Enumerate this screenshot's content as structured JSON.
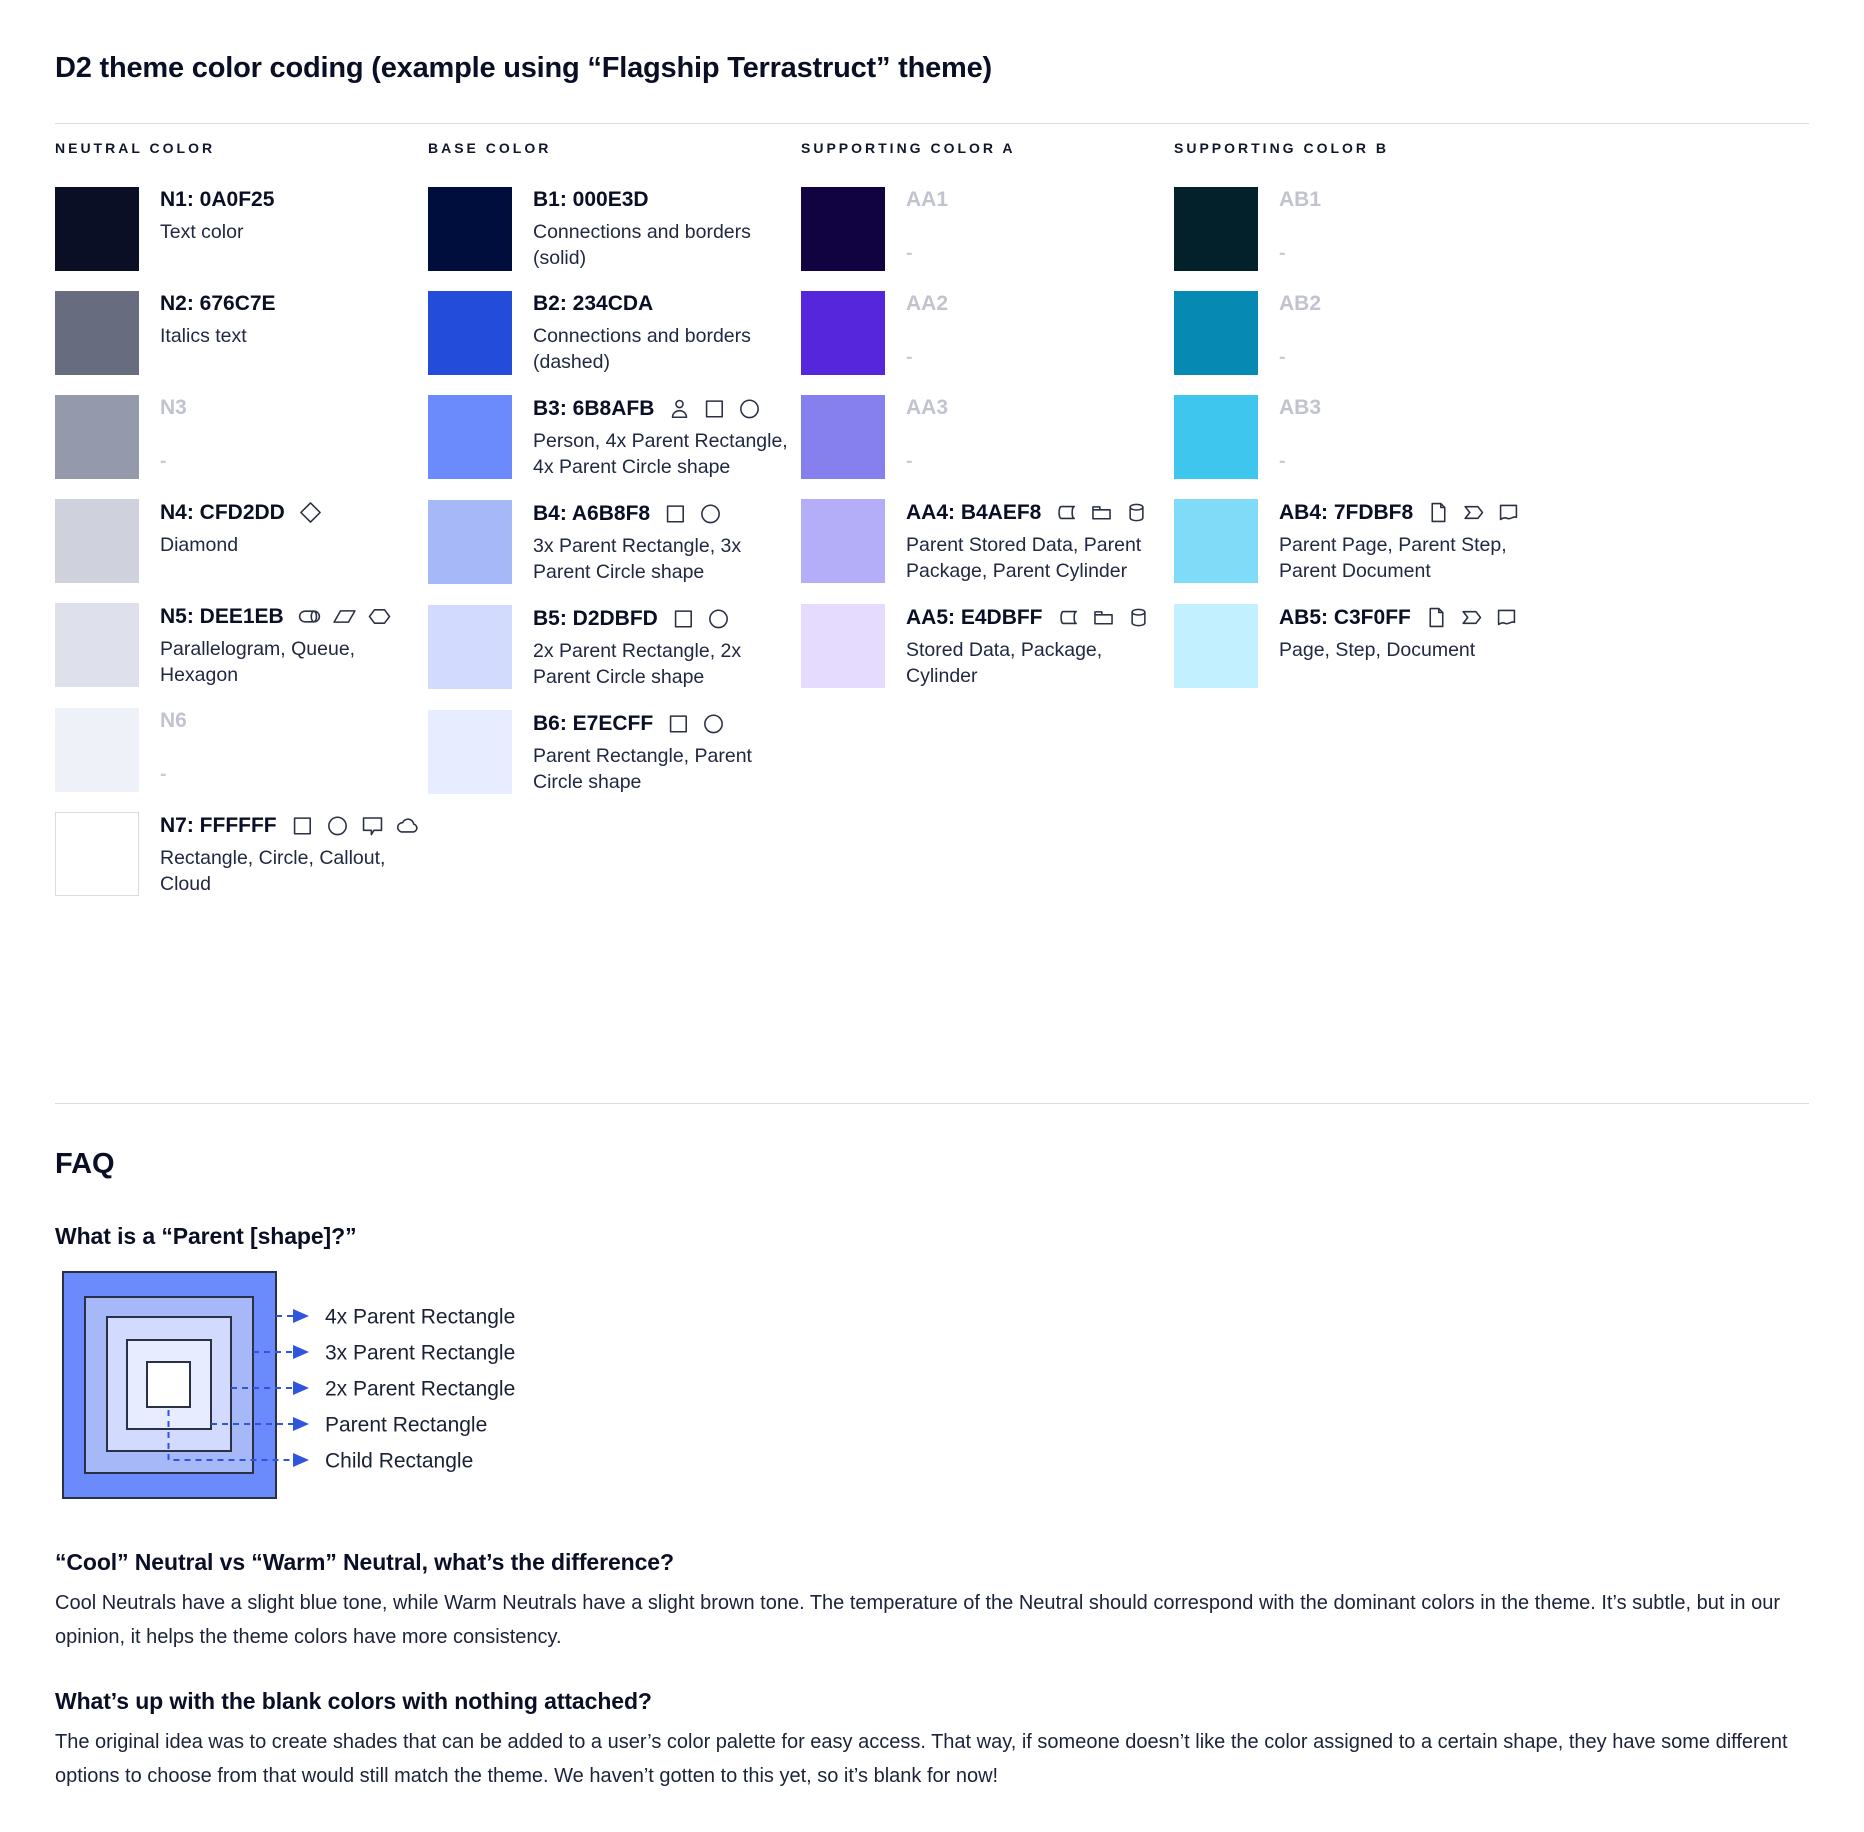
{
  "title": "D2 theme color coding (example using “Flagship Terrastruct” theme)",
  "colors": {
    "text": "#0A0F25",
    "muted_label": "#C1C4CE",
    "divider": "#D8DCE2",
    "icon_stroke": "#2B3144",
    "arrow_accent": "#2E55DB"
  },
  "palette": {
    "columns": [
      {
        "header": "NEUTRAL COLOR",
        "rows": [
          {
            "code": "N1: 0A0F25",
            "desc": "Text color",
            "swatch": "#0A0F25",
            "blank": false,
            "bordered": false,
            "icons": []
          },
          {
            "code": "N2: 676C7E",
            "desc": "Italics text",
            "swatch": "#676C7E",
            "blank": false,
            "bordered": false,
            "icons": []
          },
          {
            "code": "N3",
            "desc": "-",
            "swatch": "#9499AB",
            "blank": true,
            "bordered": false,
            "icons": []
          },
          {
            "code": "N4: CFD2DD",
            "desc": "Diamond",
            "swatch": "#CFD2DD",
            "blank": false,
            "bordered": false,
            "icons": [
              "diamond-icon"
            ]
          },
          {
            "code": "N5: DEE1EB",
            "desc": "Parallelogram, Queue, Hexagon",
            "swatch": "#DEE1EB",
            "blank": false,
            "bordered": false,
            "icons": [
              "queue-icon",
              "parallelogram-icon",
              "hexagon-icon"
            ]
          },
          {
            "code": "N6",
            "desc": "-",
            "swatch": "#EEF1F8",
            "blank": true,
            "bordered": false,
            "icons": []
          },
          {
            "code": "N7: FFFFFF",
            "desc": "Rectangle, Circle, Callout, Cloud",
            "swatch": "#FFFFFF",
            "blank": false,
            "bordered": true,
            "icons": [
              "rectangle-icon",
              "circle-icon",
              "callout-icon",
              "cloud-icon"
            ]
          }
        ]
      },
      {
        "header": "BASE COLOR",
        "rows": [
          {
            "code": "B1: 000E3D",
            "desc": "Connections and borders (solid)",
            "swatch": "#000E3D",
            "blank": false,
            "bordered": false,
            "icons": []
          },
          {
            "code": "B2: 234CDA",
            "desc": "Connections and borders (dashed)",
            "swatch": "#234CDA",
            "blank": false,
            "bordered": false,
            "icons": []
          },
          {
            "code": "B3: 6B8AFB",
            "desc": "Person, 4x Parent Rectangle, 4x Parent Circle shape",
            "swatch": "#6B8AFB",
            "blank": false,
            "bordered": false,
            "icons": [
              "person-icon",
              "rectangle-icon",
              "circle-icon"
            ]
          },
          {
            "code": "B4: A6B8F8",
            "desc": "3x Parent Rectangle, 3x Parent Circle shape",
            "swatch": "#A6B8F8",
            "blank": false,
            "bordered": false,
            "icons": [
              "rectangle-icon",
              "circle-icon"
            ]
          },
          {
            "code": "B5: D2DBFD",
            "desc": "2x Parent Rectangle, 2x Parent Circle shape",
            "swatch": "#D2DBFD",
            "blank": false,
            "bordered": false,
            "icons": [
              "rectangle-icon",
              "circle-icon"
            ]
          },
          {
            "code": "B6: E7ECFF",
            "desc": "Parent Rectangle, Parent Circle shape",
            "swatch": "#E7ECFF",
            "blank": false,
            "bordered": false,
            "icons": [
              "rectangle-icon",
              "circle-icon"
            ]
          }
        ]
      },
      {
        "header": "SUPPORTING COLOR A",
        "rows": [
          {
            "code": "AA1",
            "desc": "-",
            "swatch": "#110341",
            "blank": true,
            "bordered": false,
            "icons": []
          },
          {
            "code": "AA2",
            "desc": "-",
            "swatch": "#5526DC",
            "blank": true,
            "bordered": false,
            "icons": []
          },
          {
            "code": "AA3",
            "desc": "-",
            "swatch": "#8680EE",
            "blank": true,
            "bordered": false,
            "icons": []
          },
          {
            "code": "AA4: B4AEF8",
            "desc": "Parent Stored Data, Parent Package,  Parent Cylinder",
            "swatch": "#B4AEF8",
            "blank": false,
            "bordered": false,
            "icons": [
              "stored-data-icon",
              "package-icon",
              "cylinder-icon"
            ]
          },
          {
            "code": "AA5: E4DBFF",
            "desc": "Stored Data, Package, Cylinder",
            "swatch": "#E4DBFF",
            "blank": false,
            "bordered": false,
            "icons": [
              "stored-data-icon",
              "package-icon",
              "cylinder-icon"
            ]
          }
        ]
      },
      {
        "header": "SUPPORTING COLOR B",
        "rows": [
          {
            "code": "AB1",
            "desc": "-",
            "swatch": "#03212B",
            "blank": true,
            "bordered": false,
            "icons": []
          },
          {
            "code": "AB2",
            "desc": "-",
            "swatch": "#0689B2",
            "blank": true,
            "bordered": false,
            "icons": []
          },
          {
            "code": "AB3",
            "desc": "-",
            "swatch": "#3EC6EE",
            "blank": true,
            "bordered": false,
            "icons": []
          },
          {
            "code": "AB4: 7FDBF8",
            "desc": "Parent Page, Parent Step, Parent Document",
            "swatch": "#7FDBF8",
            "blank": false,
            "bordered": false,
            "icons": [
              "page-icon",
              "step-icon",
              "document-icon"
            ]
          },
          {
            "code": "AB5: C3F0FF",
            "desc": "Page, Step, Document",
            "swatch": "#C3F0FF",
            "blank": false,
            "bordered": false,
            "icons": [
              "page-icon",
              "step-icon",
              "document-icon"
            ]
          }
        ]
      }
    ]
  },
  "faq": {
    "heading": "FAQ",
    "q1": "What is a “Parent [shape]?”",
    "q2": "“Cool” Neutral vs “Warm” Neutral, what’s the difference?",
    "a2": "Cool Neutrals have a slight blue tone, while Warm Neutrals have a slight brown tone. The temperature of the Neutral should correspond with the dominant colors in the theme. It’s subtle, but in our opinion, it helps the theme colors have more consistency.",
    "q3": "What’s up with the blank colors with nothing attached?",
    "a3": "The original idea was to create shades that can be added to a user’s color palette for easy access. That way, if someone doesn’t like the color assigned to a certain shape, they have some different options to choose from that would still match the theme. We haven’t gotten to this yet, so it’s blank for now!",
    "diagram": {
      "labels": [
        "4x Parent Rectangle",
        "3x Parent Rectangle",
        "2x Parent Rectangle",
        "Parent Rectangle",
        "Child Rectangle"
      ],
      "fills": [
        "#6B8AFB",
        "#A6B8F8",
        "#D2DBFD",
        "#E7ECFF",
        "#FFFFFF"
      ]
    }
  }
}
